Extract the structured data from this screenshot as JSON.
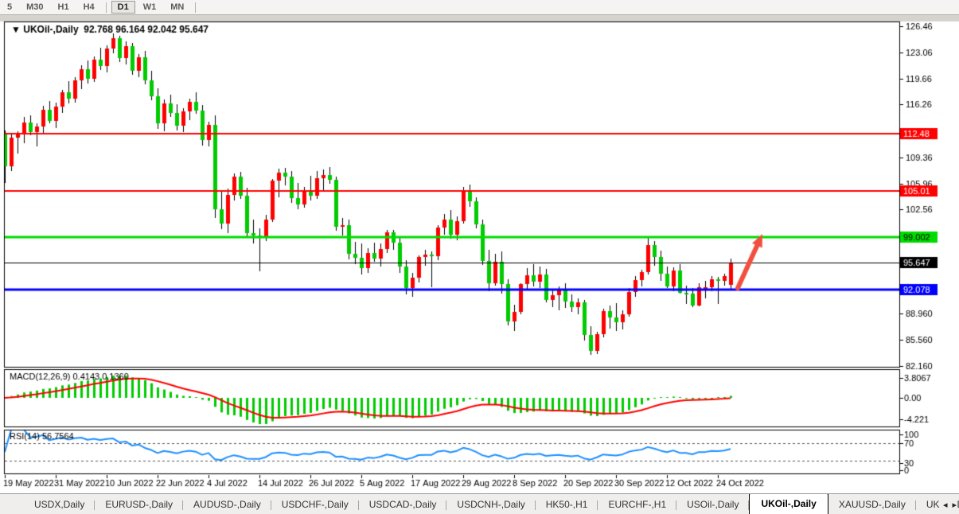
{
  "toolbar": {
    "timeframes": [
      {
        "label": "5",
        "active": false
      },
      {
        "label": "M30",
        "active": false
      },
      {
        "label": "H1",
        "active": false
      },
      {
        "label": "H4",
        "active": false
      },
      {
        "label": "D1",
        "active": true
      },
      {
        "label": "W1",
        "active": false
      },
      {
        "label": "MN",
        "active": false
      }
    ]
  },
  "chart": {
    "title_marker": "▼",
    "title": "UKOil-,Daily",
    "ohlc_text": "92.768 96.164 92.042 95.647"
  },
  "chart_data": {
    "type": "candlestick",
    "symbol": "UKOil-",
    "period": "Daily",
    "up_color": "#FF0000",
    "down_color": "#00CC00",
    "wick_color": "#000000",
    "y_axis_ticks": [
      "126.46",
      "123.06",
      "119.66",
      "116.26",
      "109.36",
      "105.96",
      "102.56",
      "88.960",
      "85.560",
      "82.160"
    ],
    "price_badges": [
      {
        "price": 112.48,
        "label": "112.48",
        "bg": "#FF0000",
        "fg": "#FFFFFF"
      },
      {
        "price": 105.01,
        "label": "105.01",
        "bg": "#FF0000",
        "fg": "#FFFFFF"
      },
      {
        "price": 99.002,
        "label": "99.002",
        "bg": "#00DC00",
        "fg": "#000000"
      },
      {
        "price": 95.647,
        "label": "95.647",
        "bg": "#000000",
        "fg": "#FFFFFF"
      },
      {
        "price": 92.078,
        "label": "92.078",
        "bg": "#0000FF",
        "fg": "#FFFFFF"
      }
    ],
    "hlines": [
      {
        "price": 112.48,
        "color": "#FF0000",
        "width": 2
      },
      {
        "price": 105.01,
        "color": "#FF0000",
        "width": 2
      },
      {
        "price": 99.002,
        "color": "#00DC00",
        "width": 3
      },
      {
        "price": 95.647,
        "color": "#000000",
        "width": 1
      },
      {
        "price": 92.078,
        "color": "#0000FF",
        "width": 3
      }
    ],
    "arrow": {
      "color": "#F2503F",
      "tail": [
        927,
        362
      ],
      "tip": [
        958,
        294
      ]
    },
    "x_tick_labels": [
      "19 May 2022",
      "31 May 2022",
      "10 Jun 2022",
      "22 Jun 2022",
      "4 Jul 2022",
      "14 Jul 2022",
      "26 Jul 2022",
      "5 Aug 2022",
      "17 Aug 2022",
      "29 Aug 2022",
      "8 Sep 2022",
      "20 Sep 2022",
      "30 Sep 2022",
      "12 Oct 2022",
      "24 Oct 2022"
    ],
    "x_tick_every": 8,
    "ohlc": [
      [
        112.4,
        112.9,
        106.0,
        108.2
      ],
      [
        108.2,
        112.3,
        107.6,
        111.9
      ],
      [
        111.9,
        112.8,
        109.9,
        112.3
      ],
      [
        112.3,
        114.6,
        111.2,
        113.9
      ],
      [
        113.9,
        114.8,
        112.2,
        112.7
      ],
      [
        112.7,
        113.8,
        110.8,
        113.4
      ],
      [
        113.4,
        116.1,
        112.5,
        115.6
      ],
      [
        115.6,
        116.7,
        113.8,
        114.1
      ],
      [
        114.1,
        116.5,
        113.2,
        116.0
      ],
      [
        116.0,
        118.2,
        115.1,
        117.8
      ],
      [
        117.8,
        119.3,
        116.4,
        117.0
      ],
      [
        117.0,
        119.8,
        116.5,
        119.4
      ],
      [
        119.4,
        121.4,
        118.3,
        120.9
      ],
      [
        120.9,
        122.0,
        119.0,
        119.6
      ],
      [
        119.6,
        122.5,
        119.2,
        122.1
      ],
      [
        122.1,
        123.7,
        120.8,
        121.3
      ],
      [
        121.3,
        124.0,
        120.4,
        123.6
      ],
      [
        123.6,
        125.5,
        122.9,
        124.9
      ],
      [
        124.9,
        125.2,
        121.8,
        122.3
      ],
      [
        122.3,
        124.5,
        121.5,
        123.9
      ],
      [
        123.9,
        124.3,
        120.1,
        120.7
      ],
      [
        120.7,
        122.8,
        119.8,
        122.4
      ],
      [
        122.4,
        123.2,
        118.9,
        119.4
      ],
      [
        119.4,
        120.6,
        116.8,
        117.3
      ],
      [
        117.3,
        118.4,
        113.1,
        113.8
      ],
      [
        113.8,
        116.9,
        112.8,
        116.4
      ],
      [
        116.4,
        117.5,
        114.6,
        115.2
      ],
      [
        115.2,
        116.3,
        112.9,
        113.5
      ],
      [
        113.5,
        115.8,
        112.7,
        115.4
      ],
      [
        115.4,
        117.0,
        114.2,
        116.6
      ],
      [
        116.6,
        117.8,
        115.0,
        115.5
      ],
      [
        115.5,
        116.2,
        110.9,
        111.6
      ],
      [
        111.6,
        114.0,
        110.8,
        113.6
      ],
      [
        113.6,
        114.8,
        101.5,
        102.6
      ],
      [
        102.6,
        105.0,
        100.0,
        100.7
      ],
      [
        100.7,
        105.3,
        99.5,
        104.5
      ],
      [
        104.5,
        107.3,
        103.7,
        106.9
      ],
      [
        106.9,
        107.5,
        103.9,
        104.4
      ],
      [
        104.4,
        105.4,
        98.9,
        99.5
      ],
      [
        99.5,
        101.3,
        98.1,
        99.2
      ],
      [
        99.2,
        100.1,
        94.5,
        99.1
      ],
      [
        99.1,
        101.9,
        98.5,
        101.2
      ],
      [
        101.2,
        106.5,
        100.9,
        106.3
      ],
      [
        106.3,
        107.9,
        104.2,
        107.4
      ],
      [
        107.4,
        108.0,
        105.7,
        106.9
      ],
      [
        106.9,
        107.6,
        103.4,
        104.0
      ],
      [
        104.0,
        106.0,
        102.6,
        103.2
      ],
      [
        103.2,
        105.5,
        102.8,
        105.1
      ],
      [
        105.1,
        107.0,
        103.7,
        104.4
      ],
      [
        104.4,
        107.6,
        103.9,
        106.6
      ],
      [
        106.6,
        107.8,
        105.1,
        107.1
      ],
      [
        107.1,
        108.1,
        105.9,
        106.4
      ],
      [
        106.4,
        106.9,
        99.8,
        100.3
      ],
      [
        100.3,
        101.5,
        99.2,
        100.5
      ],
      [
        100.5,
        101.2,
        96.1,
        96.8
      ],
      [
        96.8,
        98.3,
        95.4,
        96.3
      ],
      [
        96.3,
        98.1,
        94.1,
        94.9
      ],
      [
        94.9,
        97.5,
        94.3,
        96.9
      ],
      [
        96.9,
        98.2,
        95.7,
        96.2
      ],
      [
        96.2,
        98.1,
        95.1,
        97.4
      ],
      [
        97.4,
        99.9,
        96.9,
        99.6
      ],
      [
        99.6,
        99.9,
        97.3,
        98.2
      ],
      [
        98.2,
        98.9,
        94.3,
        95.1
      ],
      [
        95.1,
        96.0,
        91.5,
        92.3
      ],
      [
        92.3,
        94.3,
        91.2,
        93.7
      ],
      [
        93.7,
        96.6,
        93.1,
        96.4
      ],
      [
        96.4,
        97.3,
        95.2,
        96.7
      ],
      [
        96.7,
        97.1,
        92.4,
        96.5
      ],
      [
        96.5,
        100.5,
        96.0,
        100.2
      ],
      [
        100.2,
        102.0,
        99.3,
        101.2
      ],
      [
        101.2,
        102.5,
        98.8,
        99.3
      ],
      [
        99.3,
        101.7,
        98.6,
        101.0
      ],
      [
        101.0,
        105.5,
        100.7,
        105.1
      ],
      [
        105.1,
        105.8,
        102.9,
        103.6
      ],
      [
        103.6,
        104.2,
        100.1,
        100.6
      ],
      [
        100.6,
        101.2,
        95.3,
        95.9
      ],
      [
        95.9,
        97.3,
        91.9,
        93.0
      ],
      [
        93.0,
        96.8,
        92.6,
        95.7
      ],
      [
        95.7,
        97.1,
        91.6,
        92.8
      ],
      [
        92.8,
        93.5,
        87.5,
        88.0
      ],
      [
        88.0,
        90.1,
        86.7,
        89.2
      ],
      [
        89.2,
        93.0,
        88.9,
        92.8
      ],
      [
        92.8,
        94.9,
        92.2,
        94.0
      ],
      [
        94.0,
        95.4,
        92.5,
        93.2
      ],
      [
        93.2,
        95.1,
        92.3,
        94.1
      ],
      [
        94.1,
        94.8,
        90.5,
        90.8
      ],
      [
        90.8,
        92.0,
        89.8,
        91.4
      ],
      [
        91.4,
        92.5,
        89.4,
        92.0
      ],
      [
        92.0,
        92.9,
        89.7,
        90.6
      ],
      [
        90.6,
        91.5,
        89.2,
        89.8
      ],
      [
        89.8,
        91.0,
        88.9,
        90.5
      ],
      [
        90.5,
        90.8,
        85.5,
        86.2
      ],
      [
        86.2,
        87.3,
        83.6,
        84.1
      ],
      [
        84.1,
        86.6,
        83.7,
        86.3
      ],
      [
        86.3,
        89.6,
        85.9,
        89.3
      ],
      [
        89.3,
        90.0,
        87.0,
        88.5
      ],
      [
        88.5,
        90.4,
        86.7,
        87.9
      ],
      [
        87.9,
        89.4,
        86.9,
        88.9
      ],
      [
        88.9,
        92.3,
        88.6,
        91.8
      ],
      [
        91.8,
        93.9,
        91.2,
        93.4
      ],
      [
        93.4,
        94.7,
        92.5,
        94.4
      ],
      [
        94.4,
        98.9,
        94.1,
        97.9
      ],
      [
        97.9,
        98.5,
        95.2,
        96.4
      ],
      [
        96.4,
        97.2,
        93.3,
        94.2
      ],
      [
        94.2,
        95.1,
        92.3,
        92.5
      ],
      [
        92.5,
        95.0,
        91.9,
        94.6
      ],
      [
        94.6,
        95.4,
        91.6,
        91.7
      ],
      [
        91.7,
        92.6,
        90.3,
        91.6
      ],
      [
        91.6,
        92.3,
        89.8,
        90.0
      ],
      [
        90.0,
        93.0,
        89.9,
        92.4
      ],
      [
        92.4,
        93.3,
        91.0,
        92.4
      ],
      [
        92.4,
        93.9,
        91.9,
        93.5
      ],
      [
        93.5,
        93.8,
        90.3,
        93.3
      ],
      [
        93.3,
        94.2,
        92.6,
        93.9
      ],
      [
        92.768,
        96.164,
        92.042,
        95.647
      ]
    ],
    "indicators": {
      "macd": {
        "label": "MACD(12,26,9)",
        "values_text": "0.4143 0.1360",
        "fast": 12,
        "slow": 26,
        "signal": 9,
        "axis_labels": [
          "3.8067",
          "0.00",
          "-4.221"
        ],
        "histogram_color": "#00CC00",
        "signal_color": "#FF0000"
      },
      "rsi": {
        "label": "RSI(14)",
        "value_text": "56.7564",
        "period": 14,
        "axis_labels": [
          "100",
          "70",
          "30",
          "0"
        ],
        "levels": [
          70,
          30
        ],
        "line_color": "#1E90FF"
      }
    }
  },
  "tabs": {
    "items": [
      "USDX,Daily",
      "EURUSD-,Daily",
      "AUDUSD-,Daily",
      "USDCHF-,Daily",
      "USDCAD-,Daily",
      "USDCNH-,Daily",
      "HK50-,H1",
      "EURCHF-,H1",
      "USOil-,Daily",
      "UKOil-,Daily",
      "XAUUSD-,Daily",
      "UKOil-,Daily"
    ],
    "active_index": 9,
    "scroll_left": "◂",
    "scroll_right": "▸"
  }
}
